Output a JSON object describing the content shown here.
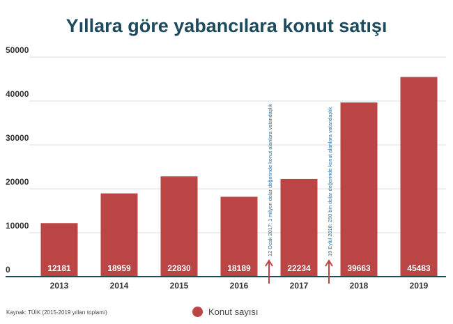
{
  "chart_data": {
    "type": "bar",
    "title": "Yıllara göre yabancılara konut satışı",
    "categories": [
      "2013",
      "2014",
      "2015",
      "2016",
      "2017",
      "2018",
      "2019"
    ],
    "series": [
      {
        "name": "Konut sayısı",
        "values": [
          12181,
          18959,
          22830,
          18189,
          22234,
          39663,
          45483
        ]
      }
    ],
    "data_labels": [
      "12181",
      "18959",
      "22830",
      "18189",
      "22234",
      "39663",
      "45483"
    ],
    "yticks": [
      "0",
      "10000",
      "20000",
      "30000",
      "40000",
      "50000"
    ],
    "ylim": [
      0,
      50000
    ],
    "grid": true,
    "legend_position": "bottom",
    "annotations": [
      {
        "between": [
          "2016",
          "2017"
        ],
        "text": "12 Ocak 2017: 1 milyon dolar değerinde konut alanlara vatandaşlık"
      },
      {
        "between": [
          "2017",
          "2018"
        ],
        "text": "19 Eylül 2018: 250 bin dolar değerinde konut alanlara vatandaşlık"
      }
    ],
    "colors": {
      "bar": "#bb4444",
      "title": "#1e4b5c",
      "annotation": "#2e6a9a",
      "arrow": "#bb4444",
      "axis": "#1e4b5c"
    }
  },
  "footer": {
    "source": "Kaynak: TÜİK (2015-2019 yılları toplamı)",
    "legend_label": "Konut sayısı"
  }
}
